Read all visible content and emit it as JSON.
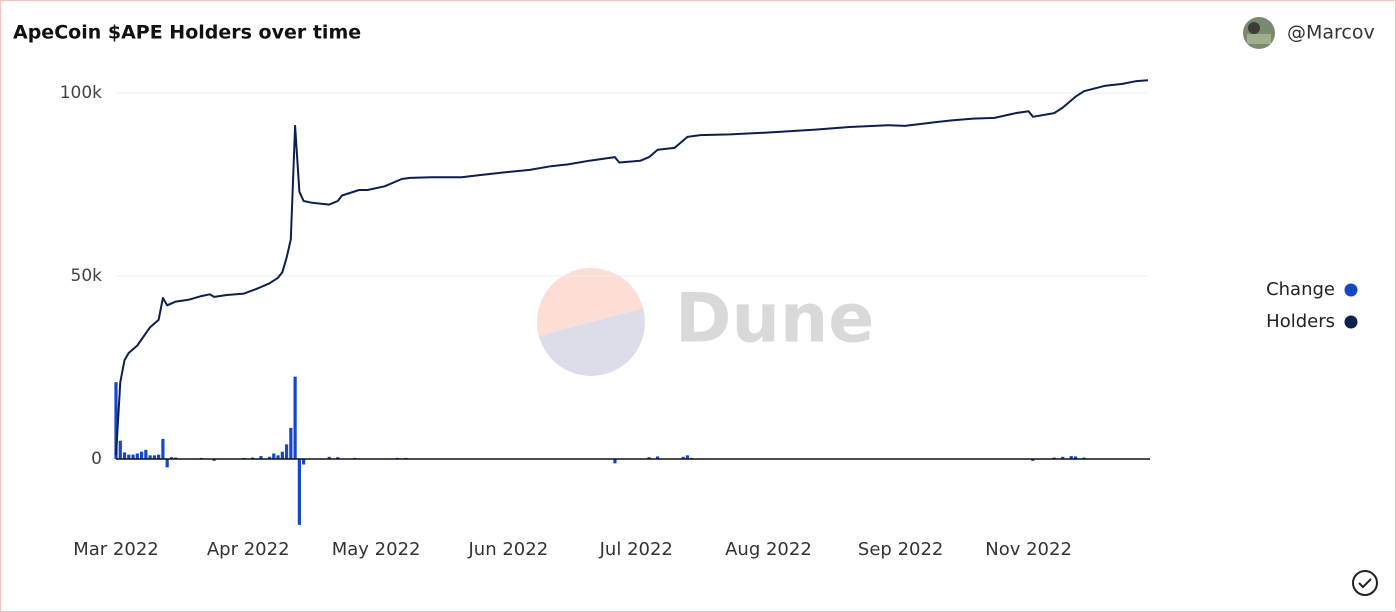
{
  "chart_data": {
    "type": "line",
    "title": "ApeCoin $APE Holders over time",
    "author": "@Marcov",
    "watermark": "Dune",
    "legend": "right",
    "grid": true,
    "xlim": [
      0,
      242
    ],
    "xticks": [
      {
        "value": 0,
        "label": "Mar 2022"
      },
      {
        "value": 31,
        "label": "Apr 2022"
      },
      {
        "value": 61,
        "label": "May 2022"
      },
      {
        "value": 92,
        "label": "Jun 2022"
      },
      {
        "value": 122,
        "label": "Jul 2022"
      },
      {
        "value": 153,
        "label": "Aug 2022"
      },
      {
        "value": 184,
        "label": "Sep 2022"
      },
      {
        "value": 214,
        "label": "Nov 2022"
      }
    ],
    "ylim": [
      -20000,
      105000
    ],
    "yticks": [
      0,
      {
        "value": 50000,
        "label": "50k"
      },
      {
        "value": 100000,
        "label": "100k"
      }
    ],
    "series": [
      {
        "name": "Change",
        "type": "bar",
        "color": "#1747c9",
        "x": [
          0,
          1,
          2,
          3,
          4,
          5,
          6,
          7,
          8,
          9,
          10,
          11,
          12,
          13,
          14,
          20,
          23,
          30,
          32,
          34,
          36,
          37,
          38,
          39,
          40,
          41,
          42,
          43,
          44,
          50,
          52,
          56,
          66,
          68,
          117,
          125,
          127,
          133,
          134,
          135,
          215,
          220,
          222,
          224,
          225,
          227
        ],
        "values": [
          21000,
          5000,
          1800,
          1200,
          1200,
          1500,
          2000,
          2500,
          1000,
          1000,
          1200,
          5500,
          -2300,
          500,
          400,
          300,
          -500,
          300,
          400,
          800,
          600,
          1500,
          1000,
          2000,
          4000,
          8500,
          22500,
          -18000,
          -1500,
          600,
          500,
          300,
          300,
          300,
          -1200,
          500,
          700,
          600,
          1000,
          300,
          -500,
          400,
          600,
          800,
          700,
          400
        ]
      },
      {
        "name": "Holders",
        "type": "line",
        "color": "#0c1f4f",
        "x": [
          0,
          1,
          2,
          3,
          5,
          8,
          10,
          11,
          12,
          14,
          17,
          20,
          22,
          23,
          26,
          30,
          33,
          34,
          36,
          38,
          39,
          40,
          41,
          42,
          43,
          44,
          46,
          50,
          52,
          53,
          57,
          59,
          63,
          67,
          69,
          74,
          81,
          85,
          91,
          97,
          102,
          106,
          111,
          117,
          118,
          123,
          125,
          127,
          131,
          134,
          137,
          144,
          153,
          164,
          172,
          181,
          185,
          192,
          196,
          201,
          206,
          211,
          214,
          215,
          220,
          222,
          225,
          227,
          232,
          236,
          239,
          242
        ],
        "values": [
          1000,
          21000,
          27000,
          29000,
          31000,
          36000,
          38000,
          44000,
          42000,
          43000,
          43500,
          44500,
          45000,
          44300,
          44800,
          45200,
          46500,
          47000,
          48000,
          49500,
          51000,
          55000,
          60000,
          91000,
          73000,
          70500,
          70000,
          69500,
          70500,
          72000,
          73500,
          73500,
          74500,
          76500,
          76800,
          77000,
          77000,
          77500,
          78300,
          79000,
          80000,
          80500,
          81500,
          82500,
          81000,
          81500,
          82500,
          84500,
          85000,
          88000,
          88500,
          88700,
          89200,
          90000,
          90700,
          91200,
          91000,
          92000,
          92500,
          93000,
          93200,
          94500,
          95000,
          93500,
          94500,
          96000,
          99000,
          100500,
          102000,
          102500,
          103200,
          103500
        ]
      }
    ]
  }
}
